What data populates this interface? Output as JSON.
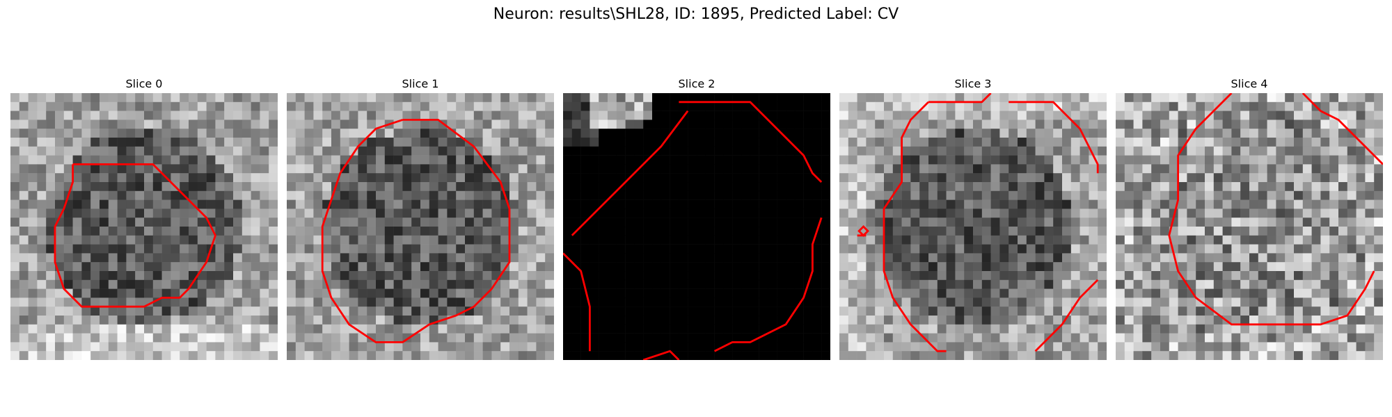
{
  "figure": {
    "title": "Neuron: results\\SHL28, ID: 1895, Predicted Label: CV",
    "contour_color": "#ff0000"
  },
  "slices": [
    {
      "title": "Slice 0",
      "tone": "mixed-gray"
    },
    {
      "title": "Slice 1",
      "tone": "mixed-gray"
    },
    {
      "title": "Slice 2",
      "tone": "mostly-black"
    },
    {
      "title": "Slice 3",
      "tone": "mixed-gray"
    },
    {
      "title": "Slice 4",
      "tone": "noisy-gray"
    }
  ]
}
